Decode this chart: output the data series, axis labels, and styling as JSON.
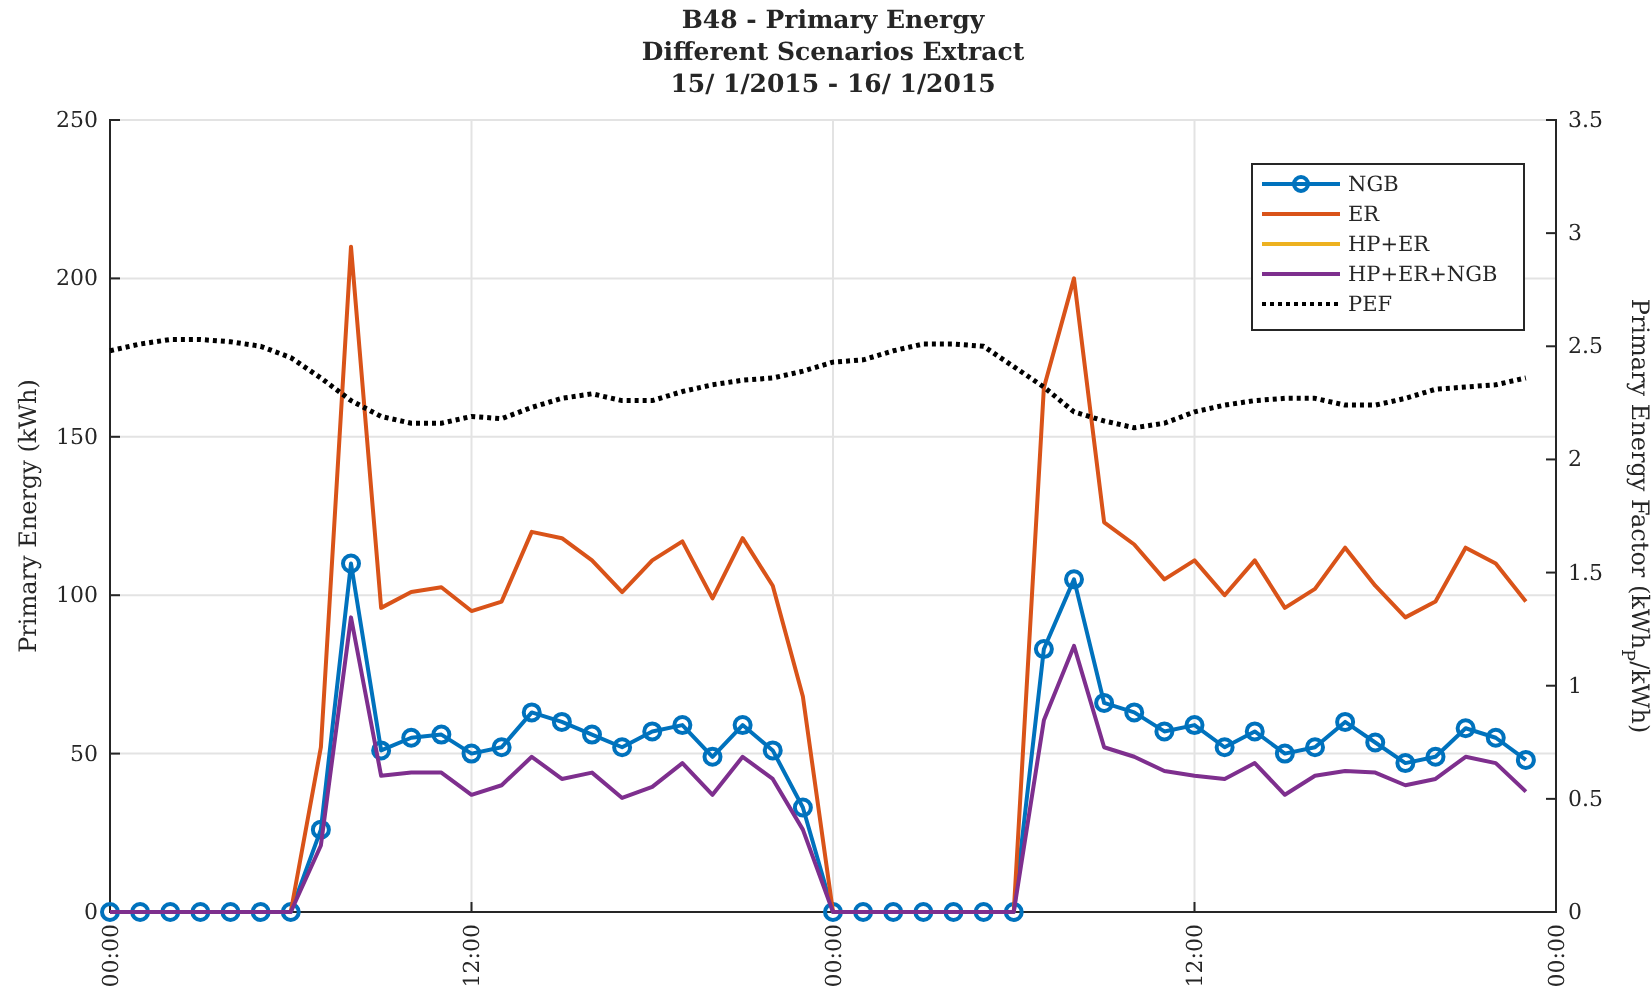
{
  "chart_data": {
    "type": "line",
    "title": "B48 - Primary Energy",
    "subtitle": "Different Scenarios Extract\n15/ 1/2015 - 16/ 1/2015",
    "ylabel": "Primary Energy (kWh)",
    "y2label": "Primary Energy Factor (kWh$_{P}$/kWh)",
    "x": [
      "2015-01-15T00:00",
      "2015-01-15T01:00",
      "2015-01-15T02:00",
      "2015-01-15T03:00",
      "2015-01-15T04:00",
      "2015-01-15T05:00",
      "2015-01-15T06:00",
      "2015-01-15T07:00",
      "2015-01-15T08:00",
      "2015-01-15T09:00",
      "2015-01-15T10:00",
      "2015-01-15T11:00",
      "2015-01-15T12:00",
      "2015-01-15T13:00",
      "2015-01-15T14:00",
      "2015-01-15T15:00",
      "2015-01-15T16:00",
      "2015-01-15T17:00",
      "2015-01-15T18:00",
      "2015-01-15T19:00",
      "2015-01-15T20:00",
      "2015-01-15T21:00",
      "2015-01-15T22:00",
      "2015-01-15T23:00",
      "2015-01-16T00:00",
      "2015-01-16T01:00",
      "2015-01-16T02:00",
      "2015-01-16T03:00",
      "2015-01-16T04:00",
      "2015-01-16T05:00",
      "2015-01-16T06:00",
      "2015-01-16T07:00",
      "2015-01-16T08:00",
      "2015-01-16T09:00",
      "2015-01-16T10:00",
      "2015-01-16T11:00",
      "2015-01-16T12:00",
      "2015-01-16T13:00",
      "2015-01-16T14:00",
      "2015-01-16T15:00",
      "2015-01-16T16:00",
      "2015-01-16T17:00",
      "2015-01-16T18:00",
      "2015-01-16T19:00",
      "2015-01-16T20:00",
      "2015-01-16T21:00",
      "2015-01-16T22:00",
      "2015-01-16T23:00"
    ],
    "xlim": [
      "2015-01-15T00:00",
      "2015-01-17T00:00"
    ],
    "xticks": [
      {
        "value": "2015-01-15T00:00",
        "label": "00:00"
      },
      {
        "value": "2015-01-15T12:00",
        "label": "12:00"
      },
      {
        "value": "2015-01-16T00:00",
        "label": "00:00"
      },
      {
        "value": "2015-01-16T12:00",
        "label": "12:00"
      },
      {
        "value": "2015-01-17T00:00",
        "label": "00:00"
      }
    ],
    "ylim": [
      0,
      250
    ],
    "yticks": [
      0,
      50,
      100,
      150,
      200,
      250
    ],
    "y2lim": [
      0,
      3.5
    ],
    "y2ticks": [
      0,
      0.5,
      1,
      1.5,
      2,
      2.5,
      3,
      3.5
    ],
    "grid": true,
    "legend": "top right",
    "series": [
      {
        "name": "NGB",
        "color": "#0072bd",
        "marker": "circle",
        "values": [
          0,
          0,
          0,
          0,
          0,
          0,
          0,
          26,
          110,
          51,
          55,
          56,
          50,
          52,
          63,
          60,
          56,
          52,
          57,
          59,
          49,
          59,
          51,
          33,
          0,
          0,
          0,
          0,
          0,
          0,
          0,
          83,
          105,
          66,
          63,
          57,
          59,
          52,
          57,
          50,
          52,
          60,
          53.5,
          47,
          49,
          58,
          55,
          48
        ]
      },
      {
        "name": "ER",
        "color": "#d95319",
        "marker": "none",
        "values": [
          null,
          null,
          null,
          null,
          null,
          null,
          0,
          52,
          210,
          96,
          101,
          102.5,
          95,
          98,
          120,
          118,
          111,
          101,
          111,
          117,
          99,
          118,
          103,
          68,
          0,
          null,
          null,
          null,
          null,
          null,
          0,
          165.5,
          200,
          123,
          116,
          105,
          111,
          100,
          111,
          96,
          102,
          115,
          103,
          93,
          98,
          115,
          110,
          98
        ]
      },
      {
        "name": "HP+ER",
        "color": "#edb120",
        "marker": "none",
        "values": [
          null,
          null,
          null,
          null,
          null,
          null,
          null,
          null,
          null,
          null,
          null,
          null,
          null,
          null,
          null,
          null,
          null,
          null,
          null,
          null,
          null,
          null,
          null,
          null,
          null,
          null,
          null,
          null,
          null,
          null,
          null,
          null,
          null,
          null,
          null,
          null,
          null,
          null,
          null,
          null,
          null,
          null,
          null,
          null,
          null,
          null,
          null,
          null
        ]
      },
      {
        "name": "HP+ER+NGB",
        "color": "#7e2f8e",
        "marker": "none",
        "values": [
          0,
          0,
          0,
          0,
          0,
          0,
          0,
          21,
          93,
          43,
          44,
          44,
          37,
          40,
          49,
          42,
          44,
          36,
          39.5,
          47,
          37,
          49,
          42,
          26,
          0,
          0,
          0,
          0,
          0,
          0,
          0,
          60.5,
          84,
          52,
          49,
          44.5,
          43,
          42,
          47,
          37,
          43,
          44.5,
          44,
          40,
          42,
          49,
          47,
          38
        ]
      },
      {
        "name": "PEF",
        "color": "#000000",
        "marker": "none",
        "line_style": "dotted",
        "axis": "y2",
        "values": [
          2.48,
          2.51,
          2.53,
          2.53,
          2.52,
          2.5,
          2.45,
          2.36,
          2.26,
          2.19,
          2.16,
          2.16,
          2.19,
          2.18,
          2.23,
          2.27,
          2.29,
          2.26,
          2.26,
          2.3,
          2.33,
          2.35,
          2.36,
          2.39,
          2.43,
          2.44,
          2.48,
          2.51,
          2.51,
          2.5,
          2.41,
          2.32,
          2.21,
          2.17,
          2.14,
          2.16,
          2.21,
          2.24,
          2.26,
          2.27,
          2.27,
          2.24,
          2.24,
          2.27,
          2.31,
          2.32,
          2.33,
          2.36
        ]
      }
    ]
  }
}
